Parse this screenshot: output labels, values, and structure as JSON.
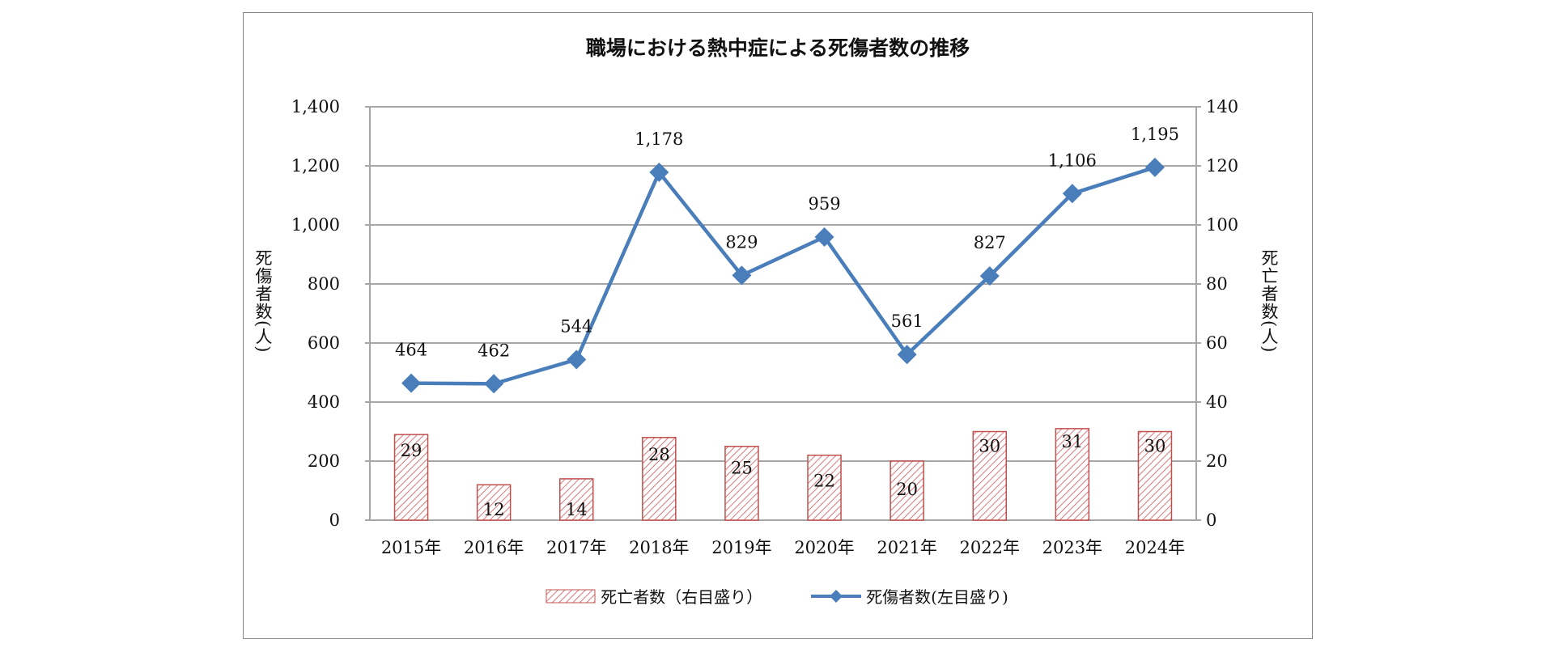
{
  "chart_data": {
    "type": "bar+line",
    "title": "職場における熱中症による死傷者数の推移",
    "categories": [
      "2015年",
      "2016年",
      "2017年",
      "2018年",
      "2019年",
      "2020年",
      "2021年",
      "2022年",
      "2023年",
      "2024年"
    ],
    "series": [
      {
        "name": "死亡者数（右目盛り）",
        "type": "bar",
        "axis": "right",
        "values": [
          29,
          12,
          14,
          28,
          25,
          22,
          20,
          30,
          31,
          30
        ],
        "color": "#c0504d",
        "pattern": "diagonal-hatch"
      },
      {
        "name": "死傷者数(左目盛り)",
        "type": "line",
        "axis": "left",
        "values": [
          464,
          462,
          544,
          1178,
          829,
          959,
          561,
          827,
          1106,
          1195
        ],
        "labels": [
          "464",
          "462",
          "544",
          "1,178",
          "829",
          "959",
          "561",
          "827",
          "1,106",
          "1,195"
        ],
        "color": "#4a7ebb",
        "marker": "diamond"
      }
    ],
    "ylabel_left": "死傷者数(人)",
    "ylabel_right": "死亡者数(人)",
    "ylim_left": [
      0,
      1400
    ],
    "ylim_right": [
      0,
      140
    ],
    "yticks_left": [
      "0",
      "200",
      "400",
      "600",
      "800",
      "1,000",
      "1,200",
      "1,400"
    ],
    "yticks_right": [
      "0",
      "20",
      "40",
      "60",
      "80",
      "100",
      "120",
      "140"
    ],
    "grid": true,
    "legend": "bottom"
  }
}
